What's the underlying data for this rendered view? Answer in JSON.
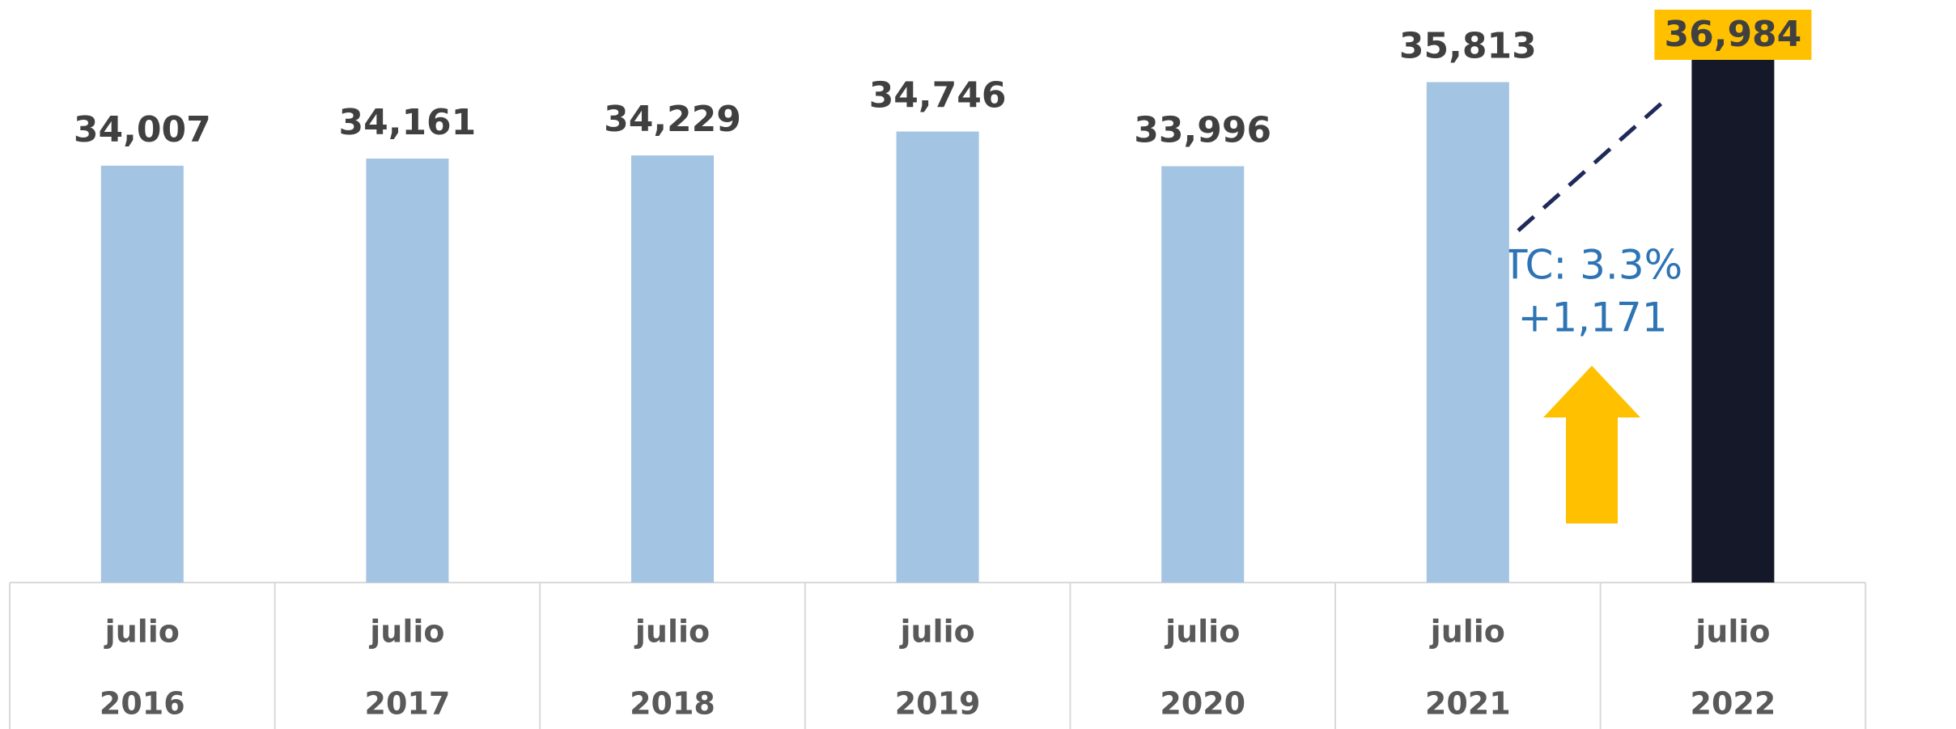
{
  "chart_data": {
    "type": "bar",
    "categories": [
      [
        "julio",
        "2016"
      ],
      [
        "julio",
        "2017"
      ],
      [
        "julio",
        "2018"
      ],
      [
        "julio",
        "2019"
      ],
      [
        "julio",
        "2020"
      ],
      [
        "julio",
        "2021"
      ],
      [
        "julio",
        "2022"
      ]
    ],
    "values": [
      34007,
      34161,
      34229,
      34746,
      33996,
      35813,
      36984
    ],
    "value_labels": [
      "34,007",
      "34,161",
      "34,229",
      "34,746",
      "33,996",
      "35,813",
      "36,984"
    ],
    "colors": [
      "#a3c4e3",
      "#a3c4e3",
      "#a3c4e3",
      "#a3c4e3",
      "#a3c4e3",
      "#a3c4e3",
      "#141829"
    ],
    "label_box_colors": [
      null,
      null,
      null,
      null,
      null,
      null,
      "#ffc000"
    ],
    "ylim": [
      25000,
      37500
    ],
    "annotations": [
      "TC: 3.3%",
      "+1,171"
    ]
  }
}
